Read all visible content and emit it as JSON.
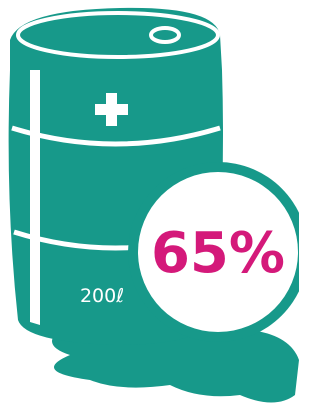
{
  "badge": {
    "text": "65%"
  },
  "barrel": {
    "label": "200ℓ"
  }
}
